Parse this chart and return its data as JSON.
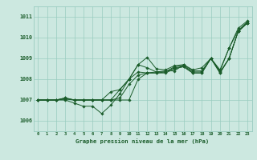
{
  "xlabel": "Graphe pression niveau de la mer (hPa)",
  "xlim": [
    -0.5,
    23.5
  ],
  "ylim": [
    1005.5,
    1011.5
  ],
  "yticks": [
    1006,
    1007,
    1008,
    1009,
    1010,
    1011
  ],
  "xticks": [
    0,
    1,
    2,
    3,
    4,
    5,
    6,
    7,
    8,
    9,
    10,
    11,
    12,
    13,
    14,
    15,
    16,
    17,
    18,
    19,
    20,
    21,
    22,
    23
  ],
  "bg_color": "#cce8e0",
  "grid_color": "#99ccc0",
  "line_color": "#1a5c2a",
  "lines": [
    [
      1007.0,
      1007.0,
      1007.0,
      1007.0,
      1006.85,
      1006.7,
      1006.7,
      1006.35,
      1006.75,
      1007.3,
      1008.0,
      1008.7,
      1008.55,
      1008.35,
      1008.4,
      1008.4,
      1008.7,
      1008.4,
      1008.4,
      1009.0,
      1008.4,
      1009.5,
      1010.35,
      1010.75
    ],
    [
      1007.0,
      1007.0,
      1007.0,
      1007.05,
      1007.0,
      1007.0,
      1007.0,
      1007.0,
      1007.4,
      1007.5,
      1008.0,
      1008.7,
      1009.05,
      1008.5,
      1008.45,
      1008.65,
      1008.7,
      1008.45,
      1008.55,
      1009.0,
      1008.45,
      1009.5,
      1010.45,
      1010.8
    ],
    [
      1007.0,
      1007.0,
      1007.0,
      1007.05,
      1007.0,
      1007.0,
      1007.0,
      1007.0,
      1007.0,
      1007.5,
      1008.0,
      1008.35,
      1008.3,
      1008.35,
      1008.35,
      1008.6,
      1008.65,
      1008.35,
      1008.35,
      1009.0,
      1008.35,
      1009.0,
      1010.3,
      1010.7
    ],
    [
      1007.0,
      1007.0,
      1007.0,
      1007.1,
      1007.0,
      1007.0,
      1007.0,
      1007.0,
      1007.0,
      1007.1,
      1007.75,
      1008.2,
      1008.3,
      1008.3,
      1008.35,
      1008.55,
      1008.6,
      1008.3,
      1008.3,
      1009.0,
      1008.3,
      1009.0,
      1010.3,
      1010.7
    ],
    [
      1007.0,
      1007.0,
      1007.0,
      1007.1,
      1007.0,
      1007.0,
      1007.0,
      1007.0,
      1007.0,
      1007.0,
      1007.0,
      1008.0,
      1008.3,
      1008.3,
      1008.3,
      1008.5,
      1008.6,
      1008.3,
      1008.3,
      1009.0,
      1008.3,
      1009.0,
      1010.3,
      1010.7
    ]
  ]
}
